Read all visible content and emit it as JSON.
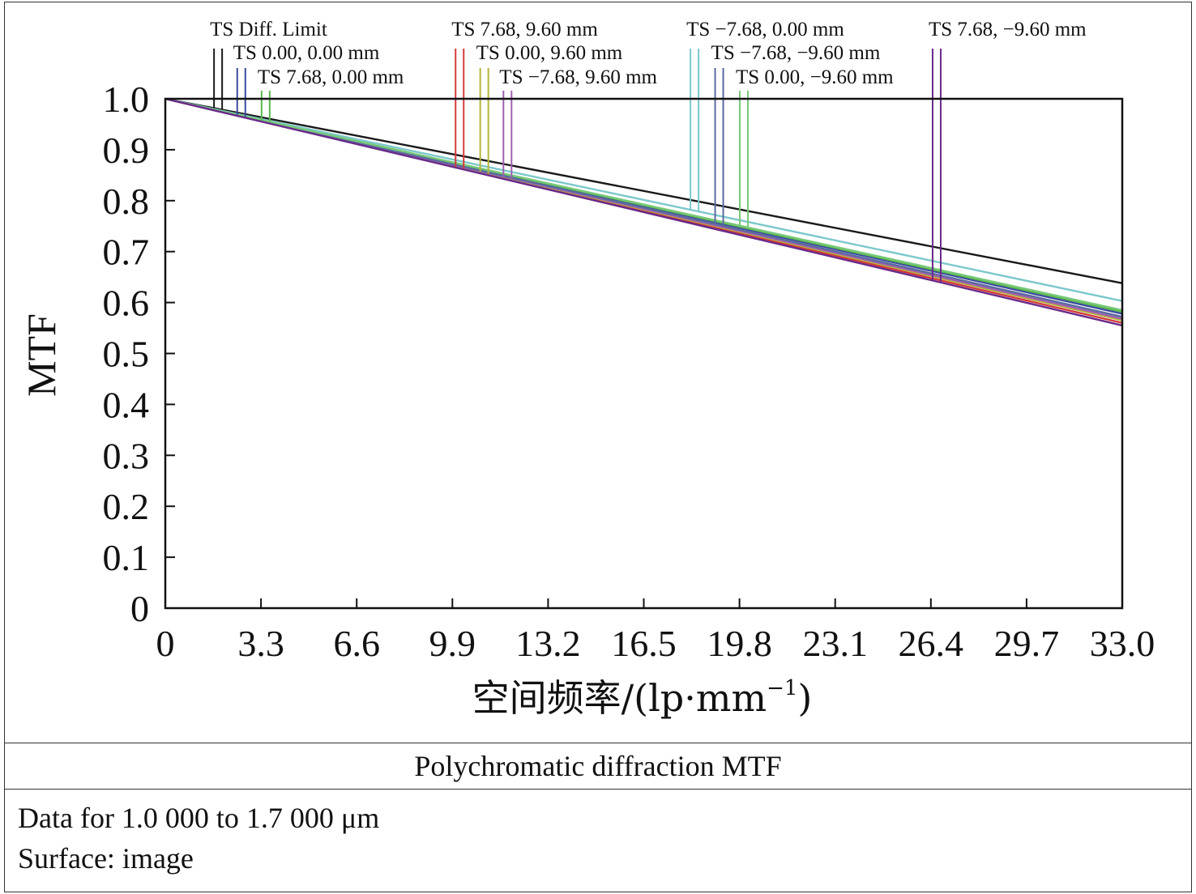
{
  "chart_data": {
    "type": "line",
    "title": "Polychromatic diffraction MTF",
    "xlabel": "空间频率/(lp·mm⁻¹)",
    "xlabel_main": "空间频率/(lp·mm",
    "xlabel_sup": "−1",
    "xlabel_close": ")",
    "ylabel": "MTF",
    "xlim": [
      0,
      33.0
    ],
    "ylim": [
      0,
      1.0
    ],
    "x_ticks": [
      "0",
      "3.3",
      "6.6",
      "9.9",
      "13.2",
      "16.5",
      "19.8",
      "23.1",
      "26.4",
      "29.7",
      "33.0"
    ],
    "y_ticks": [
      "0",
      "0.1",
      "0.2",
      "0.3",
      "0.4",
      "0.5",
      "0.6",
      "0.7",
      "0.8",
      "0.9",
      "1.0"
    ],
    "grid": false,
    "x": [
      0,
      33.0
    ],
    "series": [
      {
        "name": "TS Diff. Limit",
        "color": "#1a1a1a",
        "values": [
          1.0,
          0.638
        ],
        "legend_x": 1.82
      },
      {
        "name": "TS 0.00, 0.00 mm",
        "color": "#3b4aa0",
        "values": [
          1.0,
          0.578
        ],
        "legend_x": 2.62
      },
      {
        "name": "TS 7.68, 0.00 mm",
        "color": "#5ab84a",
        "values": [
          1.0,
          0.582
        ],
        "legend_x": 3.46
      },
      {
        "name": "TS 7.68, 9.60 mm",
        "color": "#d23a3a",
        "values": [
          1.0,
          0.56
        ],
        "legend_x": 10.15
      },
      {
        "name": "TS 0.00, 9.60 mm",
        "color": "#b5b53a",
        "values": [
          1.0,
          0.565
        ],
        "legend_x": 11.0
      },
      {
        "name": "TS −7.68, 9.60 mm",
        "color": "#a060b0",
        "values": [
          1.0,
          0.568
        ],
        "legend_x": 11.8
      },
      {
        "name": "TS −7.68, 0.00 mm",
        "color": "#7cc8cc",
        "values": [
          1.0,
          0.603
        ],
        "legend_x": 18.25
      },
      {
        "name": "TS −7.68, −9.60 mm",
        "color": "#5a6aa0",
        "values": [
          1.0,
          0.572
        ],
        "legend_x": 19.1
      },
      {
        "name": "TS 0.00, −9.60 mm",
        "color": "#78c878",
        "values": [
          1.0,
          0.585
        ],
        "legend_x": 19.95
      },
      {
        "name": "TS 7.68, −9.60 mm",
        "color": "#6a2a8a",
        "values": [
          1.0,
          0.555
        ],
        "legend_x": 26.6
      }
    ]
  },
  "caption": "Polychromatic diffraction MTF",
  "info": {
    "line1": "Data for 1.0 000 to 1.7 000 μm",
    "line2": "Surface: image"
  }
}
